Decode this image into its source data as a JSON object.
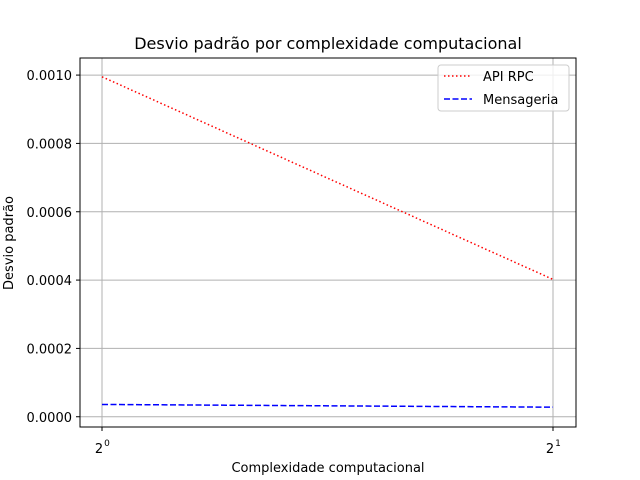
{
  "chart_data": {
    "type": "line",
    "title": "Desvio padrão por complexidade computacional",
    "xlabel": "Complexidade computacional",
    "ylabel": "Desvio padrão",
    "x_scale": "log2",
    "x": [
      1,
      2
    ],
    "x_tick_labels": [
      {
        "base": "2",
        "exp": "0"
      },
      {
        "base": "2",
        "exp": "1"
      }
    ],
    "xlim": [
      1,
      2
    ],
    "ylim": [
      -3e-05,
      0.00105
    ],
    "y_ticks": [
      0.0,
      0.0002,
      0.0004,
      0.0006,
      0.0008,
      0.001
    ],
    "y_tick_labels": [
      "0.0000",
      "0.0002",
      "0.0004",
      "0.0006",
      "0.0008",
      "0.0010"
    ],
    "grid": true,
    "legend_position": "top-right",
    "series": [
      {
        "name": "API RPC",
        "values": [
          0.000995,
          0.000402
        ],
        "color": "#ff0000",
        "style": "dotted"
      },
      {
        "name": "Mensageria",
        "values": [
          3.6e-05,
          2.8e-05
        ],
        "color": "#0000ff",
        "style": "dashed"
      }
    ]
  }
}
